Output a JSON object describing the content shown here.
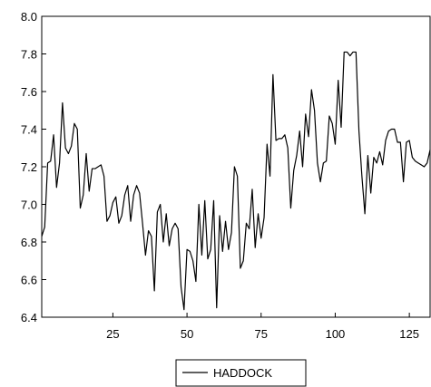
{
  "chart_data": {
    "type": "line",
    "title": "",
    "xlabel": "",
    "ylabel": "",
    "xlim": [
      1,
      132
    ],
    "ylim": [
      6.4,
      8.0
    ],
    "xticks": [
      25,
      50,
      75,
      100,
      125
    ],
    "yticks": [
      6.4,
      6.6,
      6.8,
      7.0,
      7.2,
      7.4,
      7.6,
      7.8,
      8.0
    ],
    "xtick_labels": [
      "25",
      "50",
      "75",
      "100",
      "125"
    ],
    "ytick_labels": [
      "6.4",
      "6.6",
      "6.8",
      "7.0",
      "7.2",
      "7.4",
      "7.6",
      "7.8",
      "8.0"
    ],
    "grid": false,
    "legend_position": "bottom-center",
    "series": [
      {
        "name": "HADDOCK",
        "color": "#000000",
        "values": [
          6.83,
          6.88,
          7.22,
          7.23,
          7.37,
          7.09,
          7.22,
          7.54,
          7.3,
          7.27,
          7.31,
          7.43,
          7.4,
          6.98,
          7.05,
          7.27,
          7.07,
          7.19,
          7.19,
          7.2,
          7.21,
          7.15,
          6.91,
          6.94,
          7.01,
          7.04,
          6.9,
          6.94,
          7.05,
          7.1,
          6.91,
          7.05,
          7.1,
          7.06,
          6.9,
          6.73,
          6.86,
          6.83,
          6.54,
          6.96,
          7.0,
          6.8,
          6.95,
          6.78,
          6.87,
          6.9,
          6.87,
          6.56,
          6.44,
          6.76,
          6.75,
          6.7,
          6.59,
          7.0,
          6.73,
          7.02,
          6.71,
          6.76,
          7.02,
          6.45,
          6.94,
          6.75,
          6.91,
          6.76,
          6.85,
          7.2,
          7.15,
          6.66,
          6.7,
          6.9,
          6.87,
          7.08,
          6.77,
          6.95,
          6.82,
          6.93,
          7.32,
          7.15,
          7.69,
          7.34,
          7.35,
          7.35,
          7.37,
          7.3,
          6.98,
          7.18,
          7.26,
          7.39,
          7.2,
          7.48,
          7.36,
          7.61,
          7.5,
          7.22,
          7.12,
          7.22,
          7.23,
          7.47,
          7.43,
          7.32,
          7.66,
          7.41,
          7.81,
          7.81,
          7.79,
          7.81,
          7.81,
          7.39,
          7.15,
          6.95,
          7.26,
          7.06,
          7.25,
          7.22,
          7.28,
          7.21,
          7.34,
          7.39,
          7.4,
          7.4,
          7.33,
          7.33,
          7.12,
          7.33,
          7.34,
          7.25,
          7.23,
          7.22,
          7.21,
          7.2,
          7.22,
          7.29
        ]
      }
    ]
  }
}
